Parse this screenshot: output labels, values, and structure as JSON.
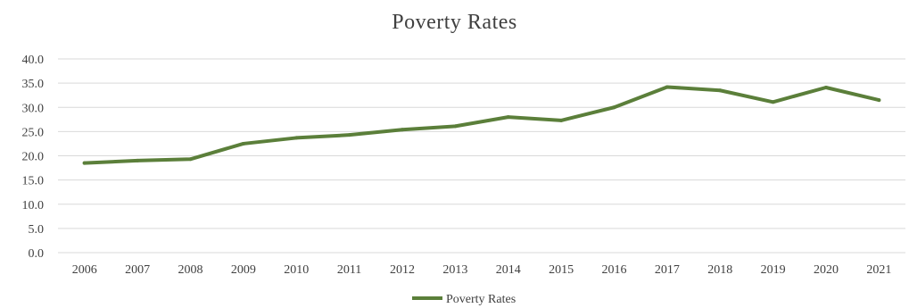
{
  "chart_data": {
    "type": "line",
    "title": "Poverty Rates",
    "x": [
      "2006",
      "2007",
      "2008",
      "2009",
      "2010",
      "2011",
      "2012",
      "2013",
      "2014",
      "2015",
      "2016",
      "2017",
      "2018",
      "2019",
      "2020",
      "2021"
    ],
    "series": [
      {
        "name": "Poverty Rates",
        "color": "#5b7f3a",
        "values": [
          18.5,
          19.0,
          19.3,
          22.5,
          23.7,
          24.3,
          25.4,
          26.1,
          28.0,
          27.3,
          30.0,
          34.2,
          33.5,
          31.1,
          34.1,
          31.5
        ]
      }
    ],
    "ylim": [
      0,
      40
    ],
    "yticks": [
      "0.0",
      "5.0",
      "10.0",
      "15.0",
      "20.0",
      "25.0",
      "30.0",
      "35.0",
      "40.0"
    ],
    "grid": true,
    "legend": "bottom"
  }
}
